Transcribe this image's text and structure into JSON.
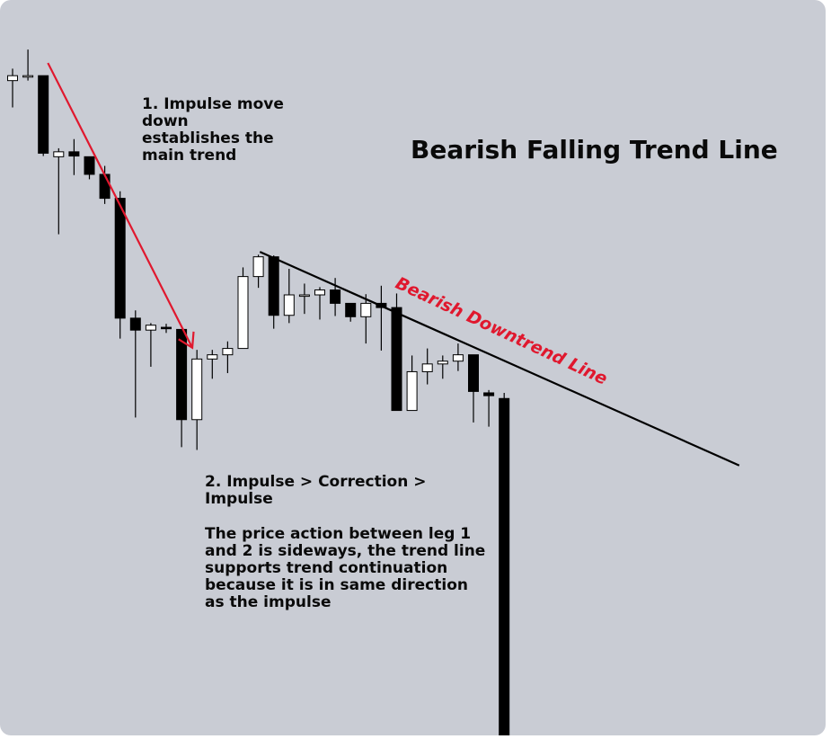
{
  "colors": {
    "background": "#c9ccd4",
    "bull_candle": "#ffffff",
    "bear_candle": "#000000",
    "impulse_arrow": "#e0182e",
    "trend_line": "#000000",
    "label_red": "#e0182e"
  },
  "chart_data": {
    "type": "candlestick",
    "title": "Bearish Falling Trend Line",
    "xlabel": "",
    "ylabel": "",
    "grid": false,
    "ylim": [
      0,
      100
    ],
    "candles": [
      {
        "o": 92.9,
        "h": 94.6,
        "l": 89.1,
        "c": 93.6
      },
      {
        "o": 93.6,
        "h": 97.3,
        "l": 92.9,
        "c": 93.6
      },
      {
        "o": 93.6,
        "h": 93.6,
        "l": 82.2,
        "c": 82.6
      },
      {
        "o": 82.1,
        "h": 83.3,
        "l": 71.1,
        "c": 82.8
      },
      {
        "o": 82.8,
        "h": 84.6,
        "l": 79.5,
        "c": 82.2
      },
      {
        "o": 82.1,
        "h": 82.1,
        "l": 78.9,
        "c": 79.6
      },
      {
        "o": 79.6,
        "h": 80.8,
        "l": 75.4,
        "c": 76.2
      },
      {
        "o": 76.2,
        "h": 77.2,
        "l": 56.3,
        "c": 59.2
      },
      {
        "o": 59.2,
        "h": 60.3,
        "l": 45.1,
        "c": 57.5
      },
      {
        "o": 57.5,
        "h": 58.5,
        "l": 52.3,
        "c": 58.2
      },
      {
        "o": 57.9,
        "h": 58.4,
        "l": 57.1,
        "c": 57.7
      },
      {
        "o": 57.6,
        "h": 57.6,
        "l": 40.9,
        "c": 44.8
      },
      {
        "o": 44.8,
        "h": 54.7,
        "l": 40.5,
        "c": 53.4
      },
      {
        "o": 53.4,
        "h": 54.7,
        "l": 50.6,
        "c": 54.0
      },
      {
        "o": 54.0,
        "h": 55.9,
        "l": 51.4,
        "c": 54.9
      },
      {
        "o": 54.9,
        "h": 66.4,
        "l": 54.9,
        "c": 65.1
      },
      {
        "o": 65.1,
        "h": 68.2,
        "l": 63.5,
        "c": 67.9
      },
      {
        "o": 67.9,
        "h": 68.1,
        "l": 57.7,
        "c": 59.6
      },
      {
        "o": 59.6,
        "h": 66.2,
        "l": 58.5,
        "c": 62.5
      },
      {
        "o": 62.5,
        "h": 64.1,
        "l": 59.8,
        "c": 62.5
      },
      {
        "o": 62.5,
        "h": 63.6,
        "l": 59.0,
        "c": 63.2
      },
      {
        "o": 63.2,
        "h": 64.9,
        "l": 59.5,
        "c": 61.3
      },
      {
        "o": 61.3,
        "h": 61.3,
        "l": 58.7,
        "c": 59.4
      },
      {
        "o": 59.4,
        "h": 62.6,
        "l": 55.6,
        "c": 61.3
      },
      {
        "o": 61.3,
        "h": 63.8,
        "l": 54.6,
        "c": 60.7
      },
      {
        "o": 60.7,
        "h": 62.7,
        "l": 47.0,
        "c": 46.1
      },
      {
        "o": 46.1,
        "h": 53.9,
        "l": 46.1,
        "c": 51.6
      },
      {
        "o": 51.6,
        "h": 54.9,
        "l": 49.8,
        "c": 52.7
      },
      {
        "o": 52.7,
        "h": 53.9,
        "l": 50.6,
        "c": 53.1
      },
      {
        "o": 53.1,
        "h": 55.6,
        "l": 51.7,
        "c": 54.0
      },
      {
        "o": 54.0,
        "h": 54.0,
        "l": 44.4,
        "c": 48.8
      },
      {
        "o": 48.6,
        "h": 49.0,
        "l": 43.8,
        "c": 48.2
      },
      {
        "o": 47.8,
        "h": 48.6,
        "l": 0.0,
        "c": 0.0
      }
    ],
    "annotations": {
      "note1": "1. Impulse move\ndown\nestablishes the\nmain trend",
      "note2": "2. Impulse > Correction >\nImpulse",
      "note3": "The price action between leg 1\nand 2 is sideways, the trend line\nsupports trend continuation\nbecause it is in same direction\nas the impulse",
      "trend_label": "Bearish Downtrend Line"
    },
    "trend_line": {
      "from": {
        "x": 16.1,
        "y": 68.6
      },
      "to": {
        "x": 47.3,
        "y": 38.3
      }
    },
    "impulse_arrow": {
      "from": {
        "x": 2.3,
        "y": 95.4
      },
      "to": {
        "x": 11.7,
        "y": 55.0
      }
    }
  }
}
